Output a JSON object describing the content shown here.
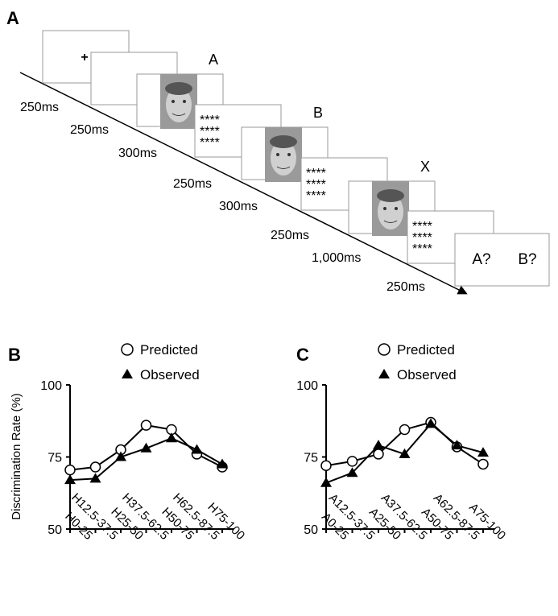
{
  "diagram": {
    "label": "A",
    "fixation": "+",
    "mask_lines": [
      "****",
      "****",
      "****"
    ],
    "stimulus_labels": [
      "A",
      "B",
      "X"
    ],
    "response": [
      "A?",
      "B?"
    ],
    "durations": [
      "250ms",
      "250ms",
      "300ms",
      "250ms",
      "300ms",
      "250ms",
      "1,000ms",
      "250ms"
    ]
  },
  "chart_data": [
    {
      "type": "line",
      "panel": "B",
      "ylabel": "Discrimination Rate (%)",
      "categories": [
        "H0-25",
        "H12.5-37.5",
        "H25-50",
        "H37.5-62.5",
        "H50-75",
        "H62.5-87.5",
        "H75-100"
      ],
      "series": [
        {
          "name": "Predicted",
          "color": "#000000",
          "marker": "circle",
          "values": [
            70.5,
            71.5,
            77.5,
            86,
            84.5,
            76,
            71.5
          ]
        },
        {
          "name": "Observed",
          "color": "#000000",
          "marker": "triangle",
          "values": [
            67,
            67.5,
            75,
            78,
            81.5,
            77.5,
            72.5
          ]
        }
      ],
      "ylim": [
        50,
        100
      ],
      "yticks": [
        50,
        75,
        100
      ]
    },
    {
      "type": "line",
      "panel": "C",
      "categories": [
        "A0-25",
        "A12.5-37.5",
        "A25-50",
        "A37.5-62.5",
        "A50-75",
        "A62.5-87.5",
        "A75-100"
      ],
      "series": [
        {
          "name": "Predicted",
          "color": "#000000",
          "marker": "circle",
          "values": [
            72,
            73.5,
            76,
            84.5,
            87,
            78.5,
            72.5
          ]
        },
        {
          "name": "Observed",
          "color": "#000000",
          "marker": "triangle",
          "values": [
            66,
            69.5,
            79,
            76,
            86.5,
            79,
            76.5
          ]
        }
      ],
      "ylim": [
        50,
        100
      ],
      "yticks": [
        50,
        75,
        100
      ]
    }
  ]
}
